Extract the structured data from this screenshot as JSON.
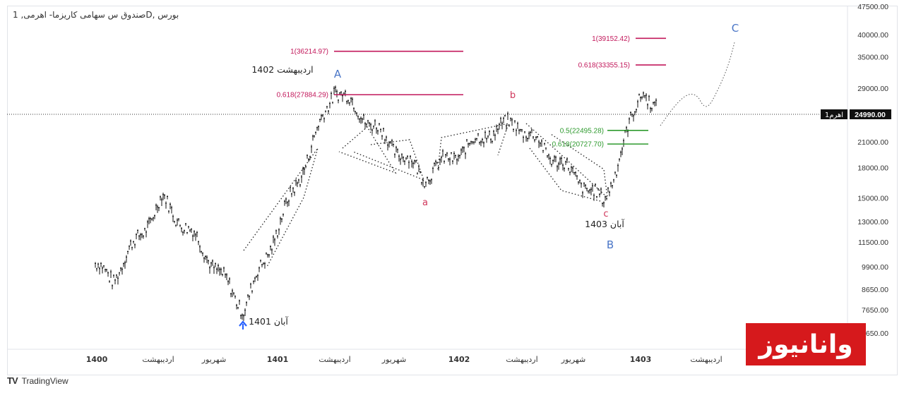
{
  "header": {
    "symbol_title": "بورس ,Dصندوق س سهامی کاریزما- اهرمی, 1"
  },
  "footer": {
    "brand": "TradingView",
    "brand_icon": "tradingview-logo-icon"
  },
  "watermark": {
    "text": "وانانیوز"
  },
  "price_tag": {
    "label": "اهرم1",
    "value": "24990.00"
  },
  "annotations": {
    "wave_labels": [
      {
        "text": "A",
        "color": "#4a76c7"
      },
      {
        "text": "B",
        "color": "#4a76c7"
      },
      {
        "text": "C",
        "color": "#4a76c7"
      },
      {
        "text": "a",
        "color": "#d0375b"
      },
      {
        "text": "b",
        "color": "#d0375b"
      },
      {
        "text": "c",
        "color": "#d0375b"
      }
    ],
    "date_labels": [
      "اردیبهشت 1402",
      "آبان 1403",
      "آبان 1401"
    ],
    "fib_levels": [
      {
        "text": "1(36214.97)",
        "color": "#c2185b"
      },
      {
        "text": "0.618(27884.29)",
        "color": "#c2185b"
      },
      {
        "text": "1(39152.42)",
        "color": "#c2185b"
      },
      {
        "text": "0.618(33355.15)",
        "color": "#c2185b"
      },
      {
        "text": "0.5(22495.28)",
        "color": "#2e9a2e"
      },
      {
        "text": "0.618(20727.70)",
        "color": "#2e9a2e"
      }
    ]
  },
  "chart_data": {
    "type": "candlestick",
    "title": "بورس ,Dصندوق س سهامی کاریزما- اهرمی, 1",
    "y_axis": {
      "scale": "log",
      "ticks": [
        "47500.00",
        "40000.00",
        "35000.00",
        "29000.00",
        "24990.00",
        "21000.00",
        "18000.00",
        "15000.00",
        "13000.00",
        "11500.00",
        "9900.00",
        "8650.00",
        "7650.00",
        "6650.00"
      ]
    },
    "x_axis": {
      "ticks": [
        "1400",
        "اردیبهشت",
        "شهریور",
        "1401",
        "اردیبهشت",
        "شهریور",
        "1402",
        "اردیبهشت",
        "شهریور",
        "1403",
        "اردیبهشت"
      ]
    },
    "last_price": 24990,
    "approx_price_path": [
      {
        "date": "1400",
        "price": 9900
      },
      {
        "date": "1400 اردیبهشت",
        "price": 9200
      },
      {
        "date": "1400 تیر",
        "price": 14800
      },
      {
        "date": "1400 شهریور",
        "price": 11500
      },
      {
        "date": "آبان 1401",
        "price": 7650
      },
      {
        "date": "1401 اسفند",
        "price": 18000
      },
      {
        "date": "اردیبهشت 1402",
        "price": 29000
      },
      {
        "date": "1402 شهریور",
        "price": 17000
      },
      {
        "date": "1402 آذر",
        "price": 22000
      },
      {
        "date": "1403 اردیبهشت",
        "price": 23500
      },
      {
        "date": "آبان 1403",
        "price": 14500
      },
      {
        "date": "1403 دی",
        "price": 29000
      },
      {
        "date": "1403 بهمن",
        "price": 24990
      }
    ],
    "fib_targets": [
      36214.97,
      27884.29,
      39152.42,
      33355.15,
      22495.28,
      20727.7
    ]
  }
}
